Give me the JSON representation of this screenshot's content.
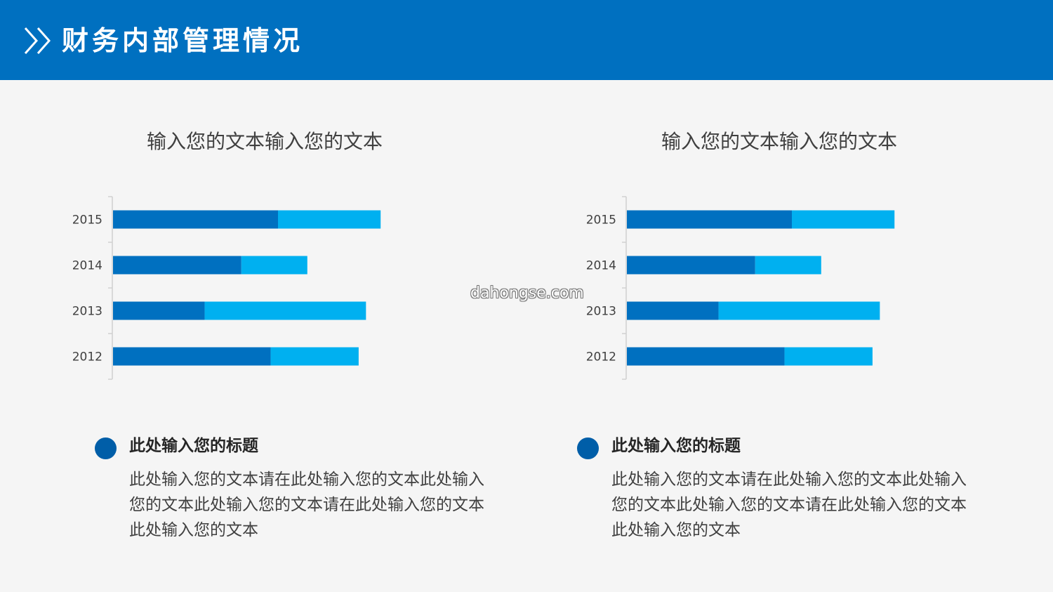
{
  "header": {
    "title": "财务内部管理情况",
    "icon": "double-chevron-right-icon"
  },
  "watermark": "dahongse.com",
  "colors": {
    "header_bg": "#0070c0",
    "series_dark": "#0070c0",
    "series_light": "#00b0f0",
    "dot": "#005ea8"
  },
  "chart_data": [
    {
      "type": "bar",
      "orientation": "horizontal",
      "stacked": true,
      "title": "输入您的文本输入您的文本",
      "categories": [
        "2015",
        "2014",
        "2013",
        "2012"
      ],
      "series": [
        {
          "values": [
            4.5,
            3.5,
            2.5,
            4.3
          ]
        },
        {
          "values": [
            2.8,
            1.8,
            4.4,
            2.4
          ]
        }
      ],
      "xlim": [
        0,
        9
      ],
      "grid": false,
      "legend": "none"
    },
    {
      "type": "bar",
      "orientation": "horizontal",
      "stacked": true,
      "title": "输入您的文本输入您的文本",
      "categories": [
        "2015",
        "2014",
        "2013",
        "2012"
      ],
      "series": [
        {
          "values": [
            4.5,
            3.5,
            2.5,
            4.3
          ]
        },
        {
          "values": [
            2.8,
            1.8,
            4.4,
            2.4
          ]
        }
      ],
      "xlim": [
        0,
        9
      ],
      "grid": false,
      "legend": "none"
    }
  ],
  "info": [
    {
      "heading": "此处输入您的标题",
      "text": "此处输入您的文本请在此处输入您的文本此处输入您的文本此处输入您的文本请在此处输入您的文本此处输入您的文本"
    },
    {
      "heading": "此处输入您的标题",
      "text": "此处输入您的文本请在此处输入您的文本此处输入您的文本此处输入您的文本请在此处输入您的文本此处输入您的文本"
    }
  ]
}
